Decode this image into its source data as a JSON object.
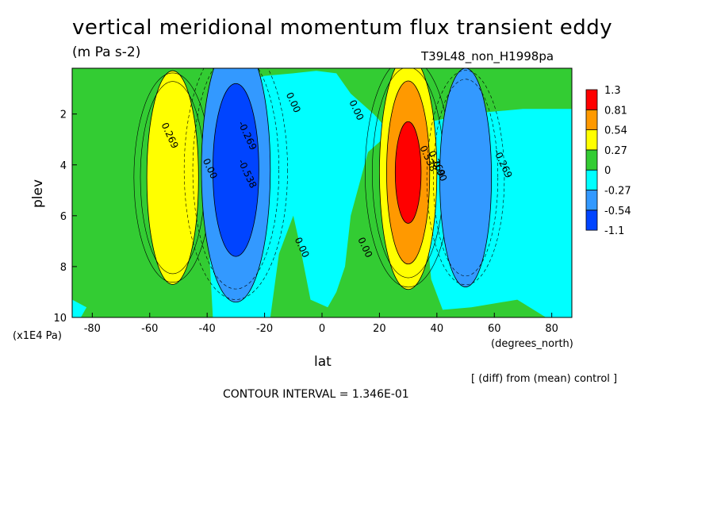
{
  "title": "vertical meridional momentum flux transient eddy",
  "units": "(m Pa s-2)",
  "run_id": "T39L48_non_H1998pa",
  "footer_note": "[ (diff) from (mean) control ]",
  "contour_interval": "CONTOUR INTERVAL = 1.346E-01",
  "chart_data": {
    "type": "heatmap",
    "title": "vertical meridional momentum flux transient eddy",
    "subtitle": "(m Pa s-2)",
    "xlabel": "lat",
    "x_units": "(degrees_north)",
    "ylabel": "plev",
    "y_units": "(x1E4 Pa)",
    "xlim": [
      -87,
      87
    ],
    "ylim": [
      10,
      0.2
    ],
    "x_ticks": [
      "-80",
      "-60",
      "-40",
      "-20",
      "0",
      "20",
      "40",
      "60",
      "80"
    ],
    "x_tick_values": [
      -80,
      -60,
      -40,
      -20,
      0,
      20,
      40,
      60,
      80
    ],
    "y_ticks": [
      "2",
      "4",
      "6",
      "8",
      "10"
    ],
    "y_tick_values": [
      2,
      4,
      6,
      8,
      10
    ],
    "contour_interval": 0.1346,
    "colorbar": {
      "levels": [
        "1.3",
        "0.81",
        "0.54",
        "0.27",
        "0",
        "-0.27",
        "-0.54",
        "-1.1"
      ],
      "colors": [
        "#ff0000",
        "#ff9900",
        "#ffff00",
        "#33cc33",
        "#00ffff",
        "#3399ff",
        "#0044ff"
      ]
    },
    "features": [
      {
        "name": "southern positive lobe",
        "lat": -52,
        "plev": 4.5,
        "peak": 0.4,
        "color": "#ffff00"
      },
      {
        "name": "southern negative lobe",
        "lat": -30,
        "plev": 4.2,
        "peak": -0.75,
        "color": "#0044ff"
      },
      {
        "name": "northern positive lobe",
        "lat": 30,
        "plev": 4.3,
        "peak": 1.0,
        "color": "#ff0000"
      },
      {
        "name": "northern negative lobe",
        "lat": 50,
        "plev": 4.5,
        "peak": -0.4,
        "color": "#3399ff"
      }
    ],
    "contour_labels": [
      {
        "text": "0.269",
        "lat": -54,
        "plev": 2.9
      },
      {
        "text": "0.00",
        "lat": -40,
        "plev": 4.2
      },
      {
        "text": "-0.269",
        "lat": -27,
        "plev": 2.9
      },
      {
        "text": "-0.538",
        "lat": -27,
        "plev": 4.4
      },
      {
        "text": "0.00",
        "lat": -11,
        "plev": 1.6
      },
      {
        "text": "0.00",
        "lat": -8,
        "plev": 7.3
      },
      {
        "text": "0.00",
        "lat": 11,
        "plev": 1.9
      },
      {
        "text": "0.00",
        "lat": 14,
        "plev": 7.3
      },
      {
        "text": "0.538",
        "lat": 36,
        "plev": 3.8
      },
      {
        "text": "0.269",
        "lat": 39,
        "plev": 4.0
      },
      {
        "text": "0.00",
        "lat": 40,
        "plev": 4.3
      },
      {
        "text": "-0.269",
        "lat": 62,
        "plev": 4.0
      }
    ]
  }
}
